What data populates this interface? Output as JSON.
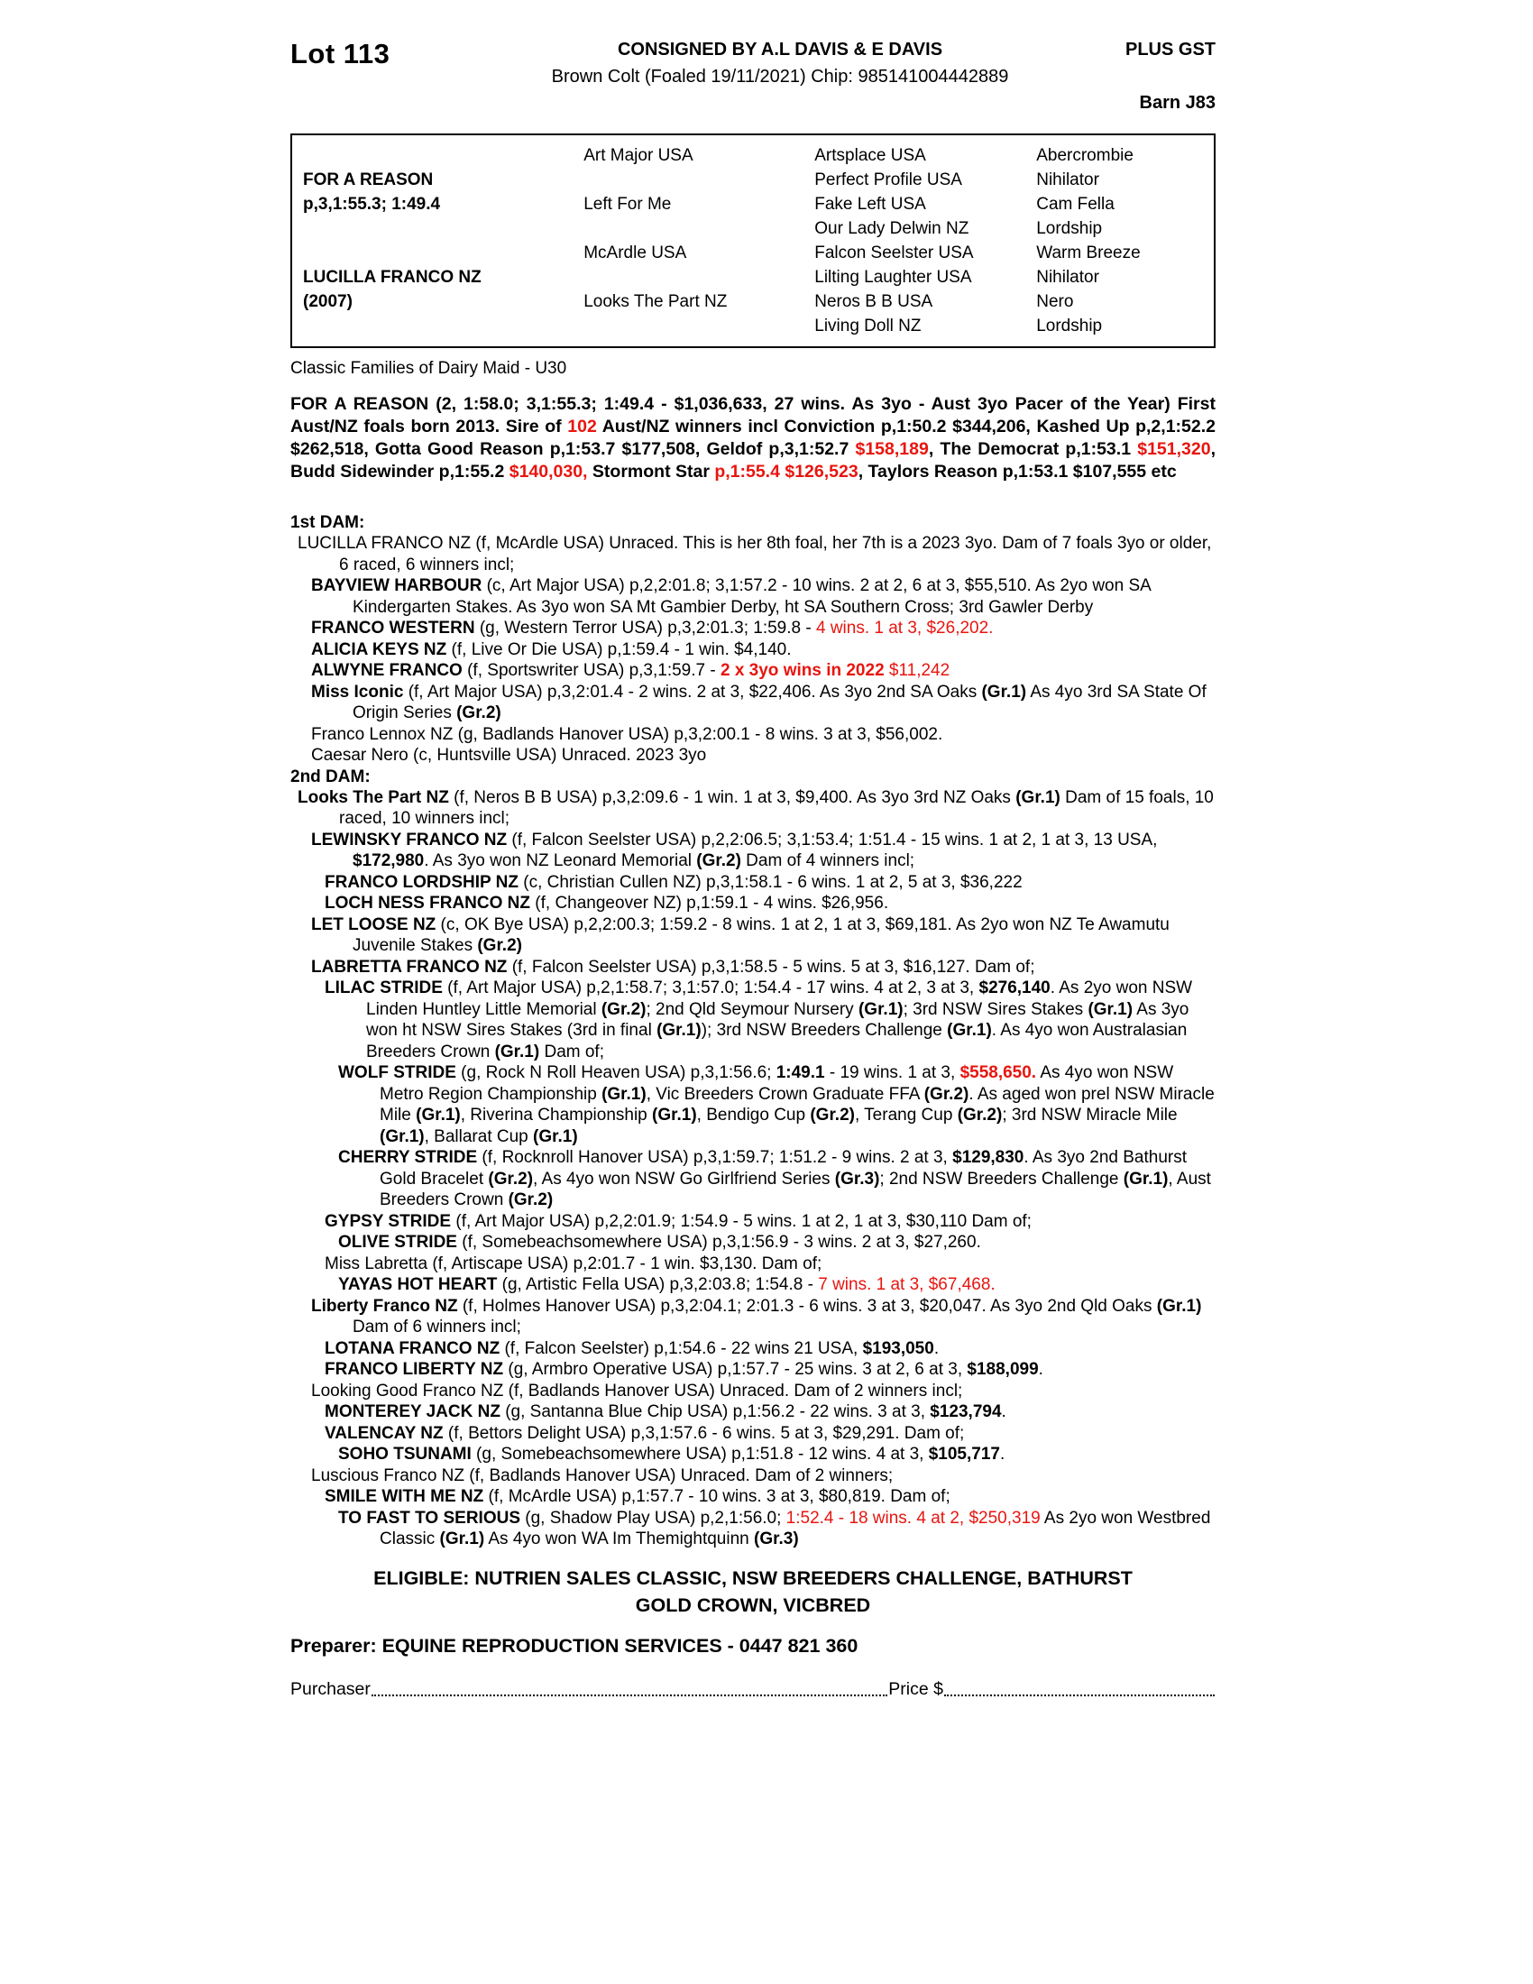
{
  "colors": {
    "accent_red": "#e8150f"
  },
  "header": {
    "lot": "Lot 113",
    "consigned": "CONSIGNED BY A.L DAVIS & E DAVIS",
    "plus_gst": "PLUS GST",
    "description": "Brown Colt (Foaled 19/11/2021) Chip: 985141004442889",
    "barn": "Barn J83"
  },
  "pedigree_table": {
    "rows": [
      [
        "",
        "Art Major USA",
        "Artsplace USA",
        "Abercrombie"
      ],
      [
        "FOR A REASON",
        "",
        "Perfect Profile USA",
        "Nihilator"
      ],
      [
        "p,3,1:55.3; 1:49.4",
        "Left For Me",
        "Fake Left USA",
        "Cam Fella"
      ],
      [
        "",
        "",
        "Our Lady Delwin NZ",
        "Lordship"
      ],
      [
        "",
        "McArdle USA",
        "Falcon Seelster USA",
        "Warm Breeze"
      ],
      [
        "LUCILLA FRANCO NZ",
        "",
        "Lilting Laughter USA",
        "Nihilator"
      ],
      [
        "(2007)",
        "Looks The Part NZ",
        "Neros B B USA",
        "Nero"
      ],
      [
        "",
        "",
        "Living Doll NZ",
        "Lordship"
      ]
    ]
  },
  "family_line": "Classic Families of Dairy Maid - U30",
  "sire_paragraph": [
    {
      "t": "FOR A REASON (2, 1:58.0; 3,1:55.3; 1:49.4 - $1,036,633, 27 wins. As 3yo - Aust 3yo Pacer of the Year) First Aust/NZ foals born 2013. Sire of ",
      "s": "b"
    },
    {
      "t": "102",
      "s": "br"
    },
    {
      "t": " Aust/NZ winners incl Conviction p,1:50.2 $344,206, Kashed Up p,2,1:52.2 $262,518, Gotta Good Reason p,1:53.7 $177,508, Geldof p,3,1:52.7 ",
      "s": "b"
    },
    {
      "t": "$158,189",
      "s": "br"
    },
    {
      "t": ", The Democrat p,1:53.1 ",
      "s": "b"
    },
    {
      "t": "$151,320",
      "s": "br"
    },
    {
      "t": ", Budd Sidewinder p,1:55.2 ",
      "s": "b"
    },
    {
      "t": "$140,030,",
      "s": "br"
    },
    {
      "t": " Stormont Star ",
      "s": "b"
    },
    {
      "t": "p,1:55.4 $126,523",
      "s": "br"
    },
    {
      "t": ", Taylors Reason p,1:53.1 $107,555 etc",
      "s": "b"
    }
  ],
  "dam1": {
    "heading": "1st DAM:",
    "entries": [
      {
        "lvl": 0,
        "segs": [
          {
            "t": "LUCILLA FRANCO NZ (f, McArdle USA) Unraced. This is her 8th foal, her 7th is a 2023 3yo. Dam of 7 foals 3yo or older, 6 raced, 6 winners incl;"
          }
        ]
      },
      {
        "lvl": 1,
        "segs": [
          {
            "t": "BAYVIEW HARBOUR",
            "s": "b"
          },
          {
            "t": " (c, Art Major USA) p,2,2:01.8; 3,1:57.2 - 10 wins. 2 at 2, 6 at 3, $55,510. As 2yo won SA Kindergarten Stakes. As 3yo won SA Mt Gambier Derby, ht SA Southern Cross; 3rd Gawler Derby"
          }
        ]
      },
      {
        "lvl": 1,
        "segs": [
          {
            "t": "FRANCO WESTERN",
            "s": "b"
          },
          {
            "t": " (g, Western Terror USA) p,3,2:01.3; 1:59.8 - "
          },
          {
            "t": "4 wins. 1 at 3, $26,202.",
            "s": "r"
          }
        ]
      },
      {
        "lvl": 1,
        "segs": [
          {
            "t": "ALICIA KEYS NZ",
            "s": "b"
          },
          {
            "t": " (f, Live Or Die USA) p,1:59.4 - 1 win. $4,140."
          }
        ]
      },
      {
        "lvl": 1,
        "segs": [
          {
            "t": "ALWYNE FRANCO",
            "s": "b"
          },
          {
            "t": " (f, Sportswriter USA) p,3,1:59.7 - "
          },
          {
            "t": "2 x 3yo wins in 2022",
            "s": "br"
          },
          {
            "t": " $11,242",
            "s": "r"
          }
        ]
      },
      {
        "lvl": 1,
        "segs": [
          {
            "t": "Miss Iconic",
            "s": "b"
          },
          {
            "t": " (f, Art Major USA) p,3,2:01.4 - 2 wins. 2 at 3, $22,406. As 3yo 2nd SA Oaks "
          },
          {
            "t": "(Gr.1)",
            "s": "b"
          },
          {
            "t": " As 4yo 3rd SA State Of Origin Series "
          },
          {
            "t": "(Gr.2)",
            "s": "b"
          }
        ]
      },
      {
        "lvl": 1,
        "segs": [
          {
            "t": "Franco Lennox NZ (g, Badlands Hanover USA) p,3,2:00.1 - 8 wins. 3 at 3, $56,002."
          }
        ]
      },
      {
        "lvl": 1,
        "segs": [
          {
            "t": "Caesar Nero (c, Huntsville USA) Unraced. 2023 3yo"
          }
        ]
      }
    ]
  },
  "dam2": {
    "heading": "2nd DAM:",
    "entries": [
      {
        "lvl": 0,
        "segs": [
          {
            "t": "Looks The Part NZ",
            "s": "b"
          },
          {
            "t": " (f, Neros B B USA) p,3,2:09.6 - 1 win. 1 at 3, $9,400. As 3yo 3rd NZ Oaks "
          },
          {
            "t": "(Gr.1)",
            "s": "b"
          },
          {
            "t": " Dam of 15 foals, 10 raced, 10 winners incl;"
          }
        ]
      },
      {
        "lvl": 1,
        "segs": [
          {
            "t": "LEWINSKY FRANCO NZ",
            "s": "b"
          },
          {
            "t": " (f, Falcon Seelster USA) p,2,2:06.5; 3,1:53.4; 1:51.4 - 15 wins. 1 at 2, 1 at 3, 13 USA, "
          },
          {
            "t": "$172,980",
            "s": "b"
          },
          {
            "t": ". As 3yo won NZ Leonard Memorial "
          },
          {
            "t": "(Gr.2)",
            "s": "b"
          },
          {
            "t": " Dam of 4 winners incl;"
          }
        ]
      },
      {
        "lvl": 2,
        "segs": [
          {
            "t": "FRANCO LORDSHIP NZ",
            "s": "b"
          },
          {
            "t": " (c, Christian Cullen NZ) p,3,1:58.1 - 6 wins. 1 at 2, 5 at 3, $36,222"
          }
        ]
      },
      {
        "lvl": 2,
        "segs": [
          {
            "t": "LOCH NESS FRANCO NZ",
            "s": "b"
          },
          {
            "t": " (f, Changeover NZ) p,1:59.1 - 4 wins. $26,956."
          }
        ]
      },
      {
        "lvl": 1,
        "segs": [
          {
            "t": "LET LOOSE NZ",
            "s": "b"
          },
          {
            "t": " (c, OK Bye USA) p,2,2:00.3; 1:59.2 - 8 wins. 1 at 2, 1 at 3, $69,181. As 2yo won NZ Te Awamutu Juvenile Stakes "
          },
          {
            "t": "(Gr.2)",
            "s": "b"
          }
        ]
      },
      {
        "lvl": 1,
        "segs": [
          {
            "t": "LABRETTA FRANCO NZ",
            "s": "b"
          },
          {
            "t": " (f, Falcon Seelster USA) p,3,1:58.5 - 5 wins. 5 at 3, $16,127. Dam of;"
          }
        ]
      },
      {
        "lvl": 2,
        "segs": [
          {
            "t": "LILAC STRIDE",
            "s": "b"
          },
          {
            "t": " (f, Art Major USA) p,2,1:58.7; 3,1:57.0; 1:54.4 - 17 wins. 4 at 2, 3 at 3, "
          },
          {
            "t": "$276,140",
            "s": "b"
          },
          {
            "t": ". As 2yo won NSW Linden Huntley Little Memorial "
          },
          {
            "t": "(Gr.2)",
            "s": "b"
          },
          {
            "t": "; 2nd Qld Seymour Nursery "
          },
          {
            "t": "(Gr.1)",
            "s": "b"
          },
          {
            "t": "; 3rd NSW Sires Stakes "
          },
          {
            "t": "(Gr.1)",
            "s": "b"
          },
          {
            "t": " As 3yo won ht NSW Sires Stakes (3rd in final "
          },
          {
            "t": "(Gr.1)",
            "s": "b"
          },
          {
            "t": "); 3rd NSW Breeders Challenge "
          },
          {
            "t": "(Gr.1)",
            "s": "b"
          },
          {
            "t": ". As 4yo won Australasian Breeders Crown "
          },
          {
            "t": "(Gr.1)",
            "s": "b"
          },
          {
            "t": " Dam of;"
          }
        ]
      },
      {
        "lvl": 3,
        "segs": [
          {
            "t": "WOLF STRIDE",
            "s": "b"
          },
          {
            "t": " (g, Rock N Roll Heaven USA) p,3,1:56.6; "
          },
          {
            "t": "1:49.1",
            "s": "b"
          },
          {
            "t": " - 19 wins. 1 at 3, "
          },
          {
            "t": "$558,650.",
            "s": "br"
          },
          {
            "t": " As 4yo won NSW Metro Region Championship "
          },
          {
            "t": "(Gr.1)",
            "s": "b"
          },
          {
            "t": ", Vic Breeders Crown Graduate FFA "
          },
          {
            "t": "(Gr.2)",
            "s": "b"
          },
          {
            "t": ". As aged won prel NSW Miracle Mile "
          },
          {
            "t": "(Gr.1)",
            "s": "b"
          },
          {
            "t": ", Riverina Championship "
          },
          {
            "t": "(Gr.1)",
            "s": "b"
          },
          {
            "t": ", Bendigo Cup "
          },
          {
            "t": "(Gr.2)",
            "s": "b"
          },
          {
            "t": ", Terang Cup "
          },
          {
            "t": "(Gr.2)",
            "s": "b"
          },
          {
            "t": "; 3rd NSW Miracle Mile "
          },
          {
            "t": "(Gr.1)",
            "s": "b"
          },
          {
            "t": ", Ballarat Cup "
          },
          {
            "t": "(Gr.1)",
            "s": "b"
          }
        ]
      },
      {
        "lvl": 3,
        "segs": [
          {
            "t": "CHERRY STRIDE",
            "s": "b"
          },
          {
            "t": " (f, Rocknroll Hanover USA) p,3,1:59.7; 1:51.2 - 9 wins. 2 at 3, "
          },
          {
            "t": "$129,830",
            "s": "b"
          },
          {
            "t": ". As 3yo 2nd Bathurst Gold Bracelet "
          },
          {
            "t": "(Gr.2)",
            "s": "b"
          },
          {
            "t": ", As 4yo won NSW Go Girlfriend Series "
          },
          {
            "t": "(Gr.3)",
            "s": "b"
          },
          {
            "t": "; 2nd NSW Breeders Challenge "
          },
          {
            "t": "(Gr.1)",
            "s": "b"
          },
          {
            "t": ", Aust Breeders Crown "
          },
          {
            "t": "(Gr.2)",
            "s": "b"
          }
        ]
      },
      {
        "lvl": 2,
        "segs": [
          {
            "t": "GYPSY STRIDE",
            "s": "b"
          },
          {
            "t": " (f, Art Major USA) p,2,2:01.9; 1:54.9 - 5 wins. 1 at 2, 1 at 3, $30,110 Dam of;"
          }
        ]
      },
      {
        "lvl": 3,
        "segs": [
          {
            "t": "OLIVE STRIDE",
            "s": "b"
          },
          {
            "t": " (f, Somebeachsomewhere USA) p,3,1:56.9 - 3 wins. 2 at 3, $27,260."
          }
        ]
      },
      {
        "lvl": 2,
        "segs": [
          {
            "t": "Miss Labretta (f, Artiscape USA) p,2:01.7 - 1 win. $3,130. Dam of;"
          }
        ]
      },
      {
        "lvl": 3,
        "segs": [
          {
            "t": "YAYAS HOT HEART",
            "s": "b"
          },
          {
            "t": " (g, Artistic Fella USA) p,3,2:03.8; 1:54.8 - "
          },
          {
            "t": "7 wins. 1 at 3, $67,468.",
            "s": "r"
          }
        ]
      },
      {
        "lvl": 1,
        "segs": [
          {
            "t": "Liberty Franco NZ",
            "s": "b"
          },
          {
            "t": " (f, Holmes Hanover USA) p,3,2:04.1; 2:01.3 - 6 wins. 3 at 3, $20,047. As 3yo 2nd Qld Oaks "
          },
          {
            "t": "(Gr.1)",
            "s": "b"
          },
          {
            "t": " Dam of 6 winners incl;"
          }
        ]
      },
      {
        "lvl": 2,
        "segs": [
          {
            "t": "LOTANA FRANCO NZ",
            "s": "b"
          },
          {
            "t": " (f, Falcon Seelster) p,1:54.6 - 22 wins 21 USA, "
          },
          {
            "t": "$193,050",
            "s": "b"
          },
          {
            "t": "."
          }
        ]
      },
      {
        "lvl": 2,
        "segs": [
          {
            "t": "FRANCO LIBERTY NZ",
            "s": "b"
          },
          {
            "t": " (g, Armbro Operative USA) p,1:57.7 - 25 wins. 3 at 2, 6 at 3, "
          },
          {
            "t": "$188,099",
            "s": "b"
          },
          {
            "t": "."
          }
        ]
      },
      {
        "lvl": 1,
        "segs": [
          {
            "t": "Looking Good Franco NZ (f, Badlands Hanover USA) Unraced. Dam of 2 winners incl;"
          }
        ]
      },
      {
        "lvl": 2,
        "segs": [
          {
            "t": "MONTEREY JACK NZ",
            "s": "b"
          },
          {
            "t": " (g, Santanna Blue Chip USA) p,1:56.2 - 22 wins. 3 at 3, "
          },
          {
            "t": "$123,794",
            "s": "b"
          },
          {
            "t": "."
          }
        ]
      },
      {
        "lvl": 2,
        "segs": [
          {
            "t": "VALENCAY NZ",
            "s": "b"
          },
          {
            "t": " (f, Bettors Delight USA) p,3,1:57.6 - 6 wins. 5 at 3, $29,291. Dam of;"
          }
        ]
      },
      {
        "lvl": 3,
        "segs": [
          {
            "t": "SOHO TSUNAMI",
            "s": "b"
          },
          {
            "t": " (g, Somebeachsomewhere USA) p,1:51.8 - 12 wins. 4 at 3, "
          },
          {
            "t": "$105,717",
            "s": "b"
          },
          {
            "t": "."
          }
        ]
      },
      {
        "lvl": 1,
        "segs": [
          {
            "t": "Luscious Franco NZ (f, Badlands Hanover USA) Unraced. Dam of 2 winners;"
          }
        ]
      },
      {
        "lvl": 2,
        "segs": [
          {
            "t": "SMILE WITH ME NZ",
            "s": "b"
          },
          {
            "t": " (f, McArdle USA) p,1:57.7 - 10 wins. 3 at 3, $80,819. Dam of;"
          }
        ]
      },
      {
        "lvl": 3,
        "segs": [
          {
            "t": "TO FAST TO SERIOUS",
            "s": "b"
          },
          {
            "t": " (g, Shadow Play USA) p,2,1:56.0; "
          },
          {
            "t": "1:52.4 - 18 wins. 4 at 2, $250,319",
            "s": "r"
          },
          {
            "t": " As 2yo won Westbred Classic "
          },
          {
            "t": "(Gr.1)",
            "s": "b"
          },
          {
            "t": " As 4yo won WA Im Themightquinn "
          },
          {
            "t": "(Gr.3)",
            "s": "b"
          }
        ]
      }
    ]
  },
  "eligible": {
    "line1": "ELIGIBLE: NUTRIEN SALES CLASSIC, NSW BREEDERS CHALLENGE, BATHURST",
    "line2": "GOLD CROWN, VICBRED"
  },
  "preparer": "Preparer: EQUINE REPRODUCTION SERVICES - 0447 821 360",
  "purchaser": {
    "label": "Purchaser",
    "price_label": "Price $"
  }
}
